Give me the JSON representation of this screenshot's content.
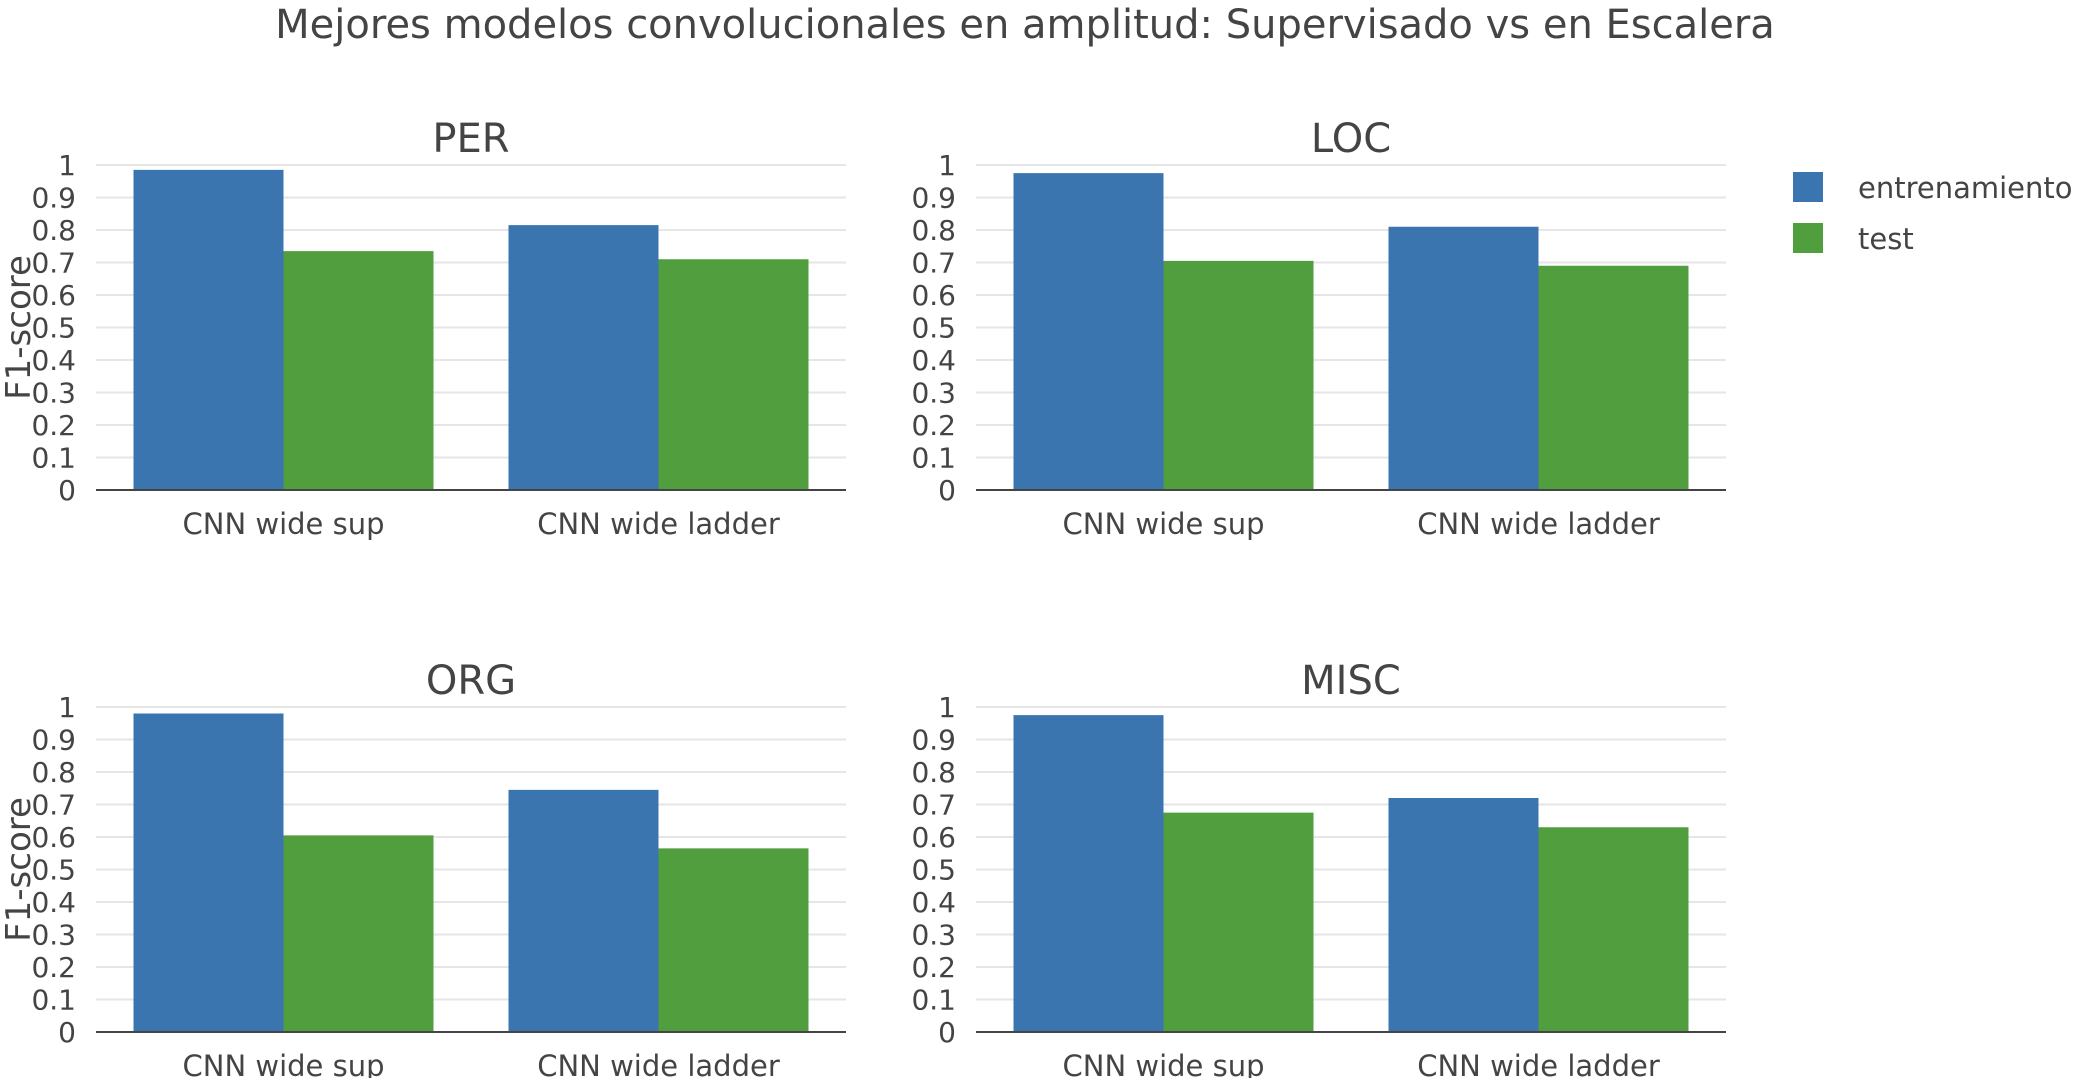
{
  "title": "Mejores modelos convolucionales en amplitud: Supervisado vs en Escalera",
  "chart_data": {
    "type": "bar",
    "ylabel": "F1-score",
    "ylim": [
      0,
      1
    ],
    "yticks": [
      "0",
      "0.1",
      "0.2",
      "0.3",
      "0.4",
      "0.5",
      "0.6",
      "0.7",
      "0.8",
      "0.9",
      "1"
    ],
    "legend": [
      {
        "name": "entrenamiento",
        "color": "#3a75af"
      },
      {
        "name": "test",
        "color": "#519e3e"
      }
    ],
    "legend_position": "top-right",
    "subplots": [
      {
        "title": "PER",
        "categories": [
          "CNN wide sup",
          "CNN wide ladder"
        ],
        "series": [
          {
            "name": "entrenamiento",
            "values": [
              0.985,
              0.815
            ]
          },
          {
            "name": "test",
            "values": [
              0.735,
              0.71
            ]
          }
        ]
      },
      {
        "title": "LOC",
        "categories": [
          "CNN wide sup",
          "CNN wide ladder"
        ],
        "series": [
          {
            "name": "entrenamiento",
            "values": [
              0.975,
              0.81
            ]
          },
          {
            "name": "test",
            "values": [
              0.705,
              0.69
            ]
          }
        ]
      },
      {
        "title": "ORG",
        "categories": [
          "CNN wide sup",
          "CNN wide ladder"
        ],
        "series": [
          {
            "name": "entrenamiento",
            "values": [
              0.98,
              0.745
            ]
          },
          {
            "name": "test",
            "values": [
              0.605,
              0.565
            ]
          }
        ]
      },
      {
        "title": "MISC",
        "categories": [
          "CNN wide sup",
          "CNN wide ladder"
        ],
        "series": [
          {
            "name": "entrenamiento",
            "values": [
              0.975,
              0.72
            ]
          },
          {
            "name": "test",
            "values": [
              0.675,
              0.63
            ]
          }
        ]
      }
    ]
  }
}
